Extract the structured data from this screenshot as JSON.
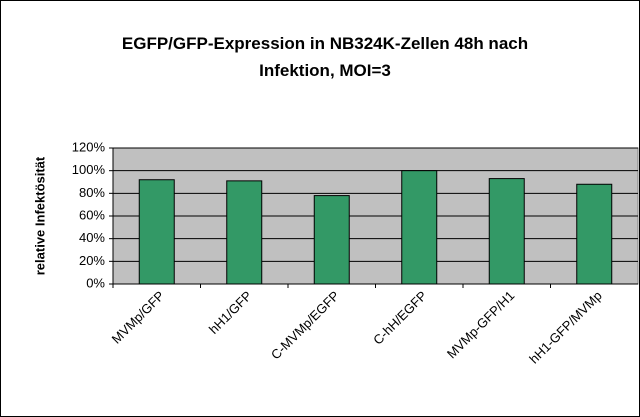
{
  "chart_data": {
    "type": "bar",
    "title": "EGFP/GFP-Expression in NB324K-Zellen 48h nach Infektion, MOI=3",
    "y_label": "relative Infektösität",
    "categories": [
      "MVMp/GFP",
      "hH1/GFP",
      "C-MVMp/EGFP",
      "C-hH/EGFP",
      "MVMp-GFP/H1",
      "hH1-GFP/MVMp"
    ],
    "values": [
      92,
      91,
      78,
      100,
      93,
      88
    ],
    "color": "#339966",
    "ylim": [
      0,
      120
    ],
    "yticks": [
      {
        "value": 0,
        "label": "0%"
      },
      {
        "value": 20,
        "label": "20%"
      },
      {
        "value": 40,
        "label": "40%"
      },
      {
        "value": 60,
        "label": "60%"
      },
      {
        "value": 80,
        "label": "80%"
      },
      {
        "value": 100,
        "label": "100%"
      },
      {
        "value": 120,
        "label": "120%"
      }
    ],
    "grid": true
  }
}
